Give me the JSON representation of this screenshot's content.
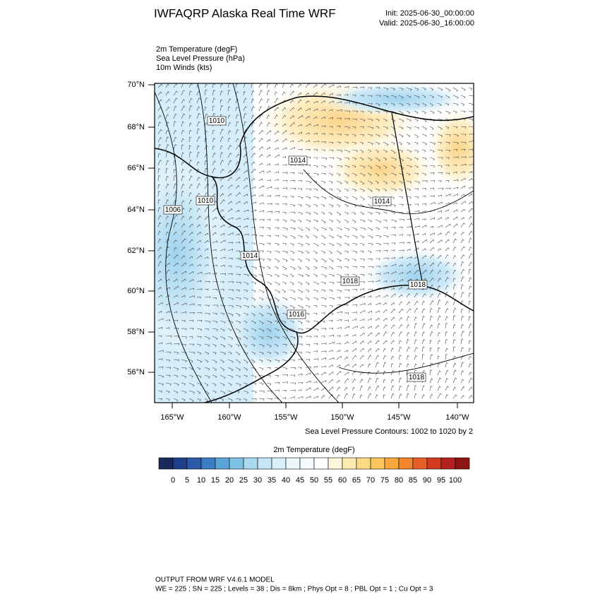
{
  "header": {
    "title": "IWFAQRP Alaska Real Time WRF",
    "init": "Init: 2025-06-30_00:00:00",
    "valid": "Valid: 2025-06-30_16:00:00"
  },
  "fields": [
    "2m Temperature   (degF)",
    "Sea Level Pressure   (hPa)",
    "10m Winds   (kts)"
  ],
  "map": {
    "lat_labels": [
      "70°N",
      "68°N",
      "66°N",
      "64°N",
      "62°N",
      "60°N",
      "58°N",
      "56°N"
    ],
    "lon_labels": [
      "165°W",
      "160°W",
      "155°W",
      "150°W",
      "145°W",
      "140°W"
    ],
    "contour_labels": [
      "1010",
      "1014",
      "1010",
      "1006",
      "1014",
      "1014",
      "1018",
      "1016",
      "1018",
      "1018"
    ]
  },
  "contour_note": "Sea Level Pressure Contours: 1002 to 1020 by 2",
  "colorbar": {
    "title": "2m Temperature  (degF)",
    "ticks": [
      0,
      5,
      10,
      15,
      20,
      25,
      30,
      35,
      40,
      45,
      50,
      55,
      60,
      65,
      70,
      75,
      80,
      85,
      90,
      95,
      100
    ],
    "colors": [
      "#1b2a5c",
      "#203f88",
      "#2b5ba8",
      "#3c7dc3",
      "#5ca4d7",
      "#80c1e7",
      "#a7d9f1",
      "#c3e6f5",
      "#daf0f9",
      "#ecf7fc",
      "#f6fbfe",
      "#ffffff",
      "#fef6dc",
      "#feeaae",
      "#fddb84",
      "#fcc45b",
      "#f9a73d",
      "#f4852c",
      "#e65f27",
      "#d23a22",
      "#b61f1f",
      "#8c1414"
    ]
  },
  "footer": [
    "OUTPUT FROM WRF V4.6.1 MODEL",
    "WE = 225 ; SN = 225 ; Levels = 38 ; Dis = 8km ; Phys Opt = 8 ; PBL Opt = 1 ; Cu Opt = 3"
  ]
}
